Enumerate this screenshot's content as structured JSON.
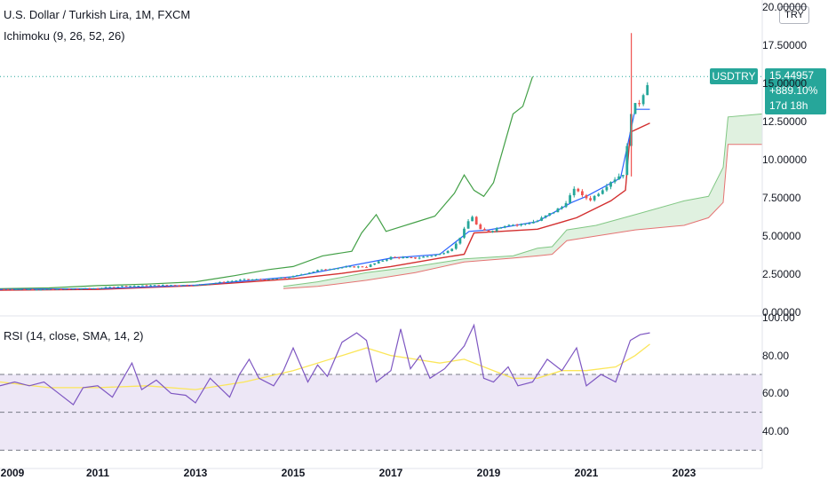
{
  "header": {
    "title": "U.S. Dollar / Turkish Lira, 1M, FXCM",
    "indicator": "Ichimoku (9, 26, 52, 26)",
    "currency": "TRY"
  },
  "price_badge": {
    "symbol": "USDTRY",
    "price": "15.44957",
    "change": "+889.10%",
    "countdown": "17d 18h"
  },
  "rsi_panel": {
    "title": "RSI (14, close, SMA, 14, 2)"
  },
  "colors": {
    "up": "#26a69a",
    "down": "#ef5350",
    "tenkan": "#2962ff",
    "kijun": "#b71c1c",
    "chikou": "#43a047",
    "cloud": "#a5d6a7",
    "rsi": "#7e57c2",
    "rsi_ma": "#fbe65a",
    "rsi_band": "#ede7f6"
  },
  "chart_data": [
    {
      "type": "candlestick",
      "title": "U.S. Dollar / Turkish Lira, 1M, FXCM",
      "ylim": [
        0,
        20
      ],
      "y_ticks": [
        "0.00000",
        "2.50000",
        "5.00000",
        "7.50000",
        "10.00000",
        "12.50000",
        "15.00000",
        "17.50000",
        "20.00000"
      ],
      "y_tick_values": [
        0,
        2.5,
        5,
        7.5,
        10,
        12.5,
        15,
        17.5,
        20
      ],
      "x_ticks": [
        "2009",
        "2011",
        "2013",
        "2015",
        "2017",
        "2019",
        "2021",
        "2023"
      ],
      "xlim": [
        2009,
        2024.6
      ],
      "price_anchors": [
        [
          2009.0,
          1.52
        ],
        [
          2010.0,
          1.5
        ],
        [
          2011.0,
          1.58
        ],
        [
          2011.5,
          1.72
        ],
        [
          2012.5,
          1.79
        ],
        [
          2013.0,
          1.78
        ],
        [
          2014.0,
          2.15
        ],
        [
          2014.5,
          2.15
        ],
        [
          2015.0,
          2.35
        ],
        [
          2015.5,
          2.75
        ],
        [
          2016.0,
          2.95
        ],
        [
          2016.5,
          3.0
        ],
        [
          2017.0,
          3.6
        ],
        [
          2017.5,
          3.55
        ],
        [
          2018.0,
          3.8
        ],
        [
          2018.3,
          4.3
        ],
        [
          2018.5,
          5.4
        ],
        [
          2018.65,
          6.4
        ],
        [
          2018.8,
          5.4
        ],
        [
          2019.0,
          5.3
        ],
        [
          2019.4,
          5.8
        ],
        [
          2019.6,
          5.7
        ],
        [
          2020.0,
          6.0
        ],
        [
          2020.5,
          6.9
        ],
        [
          2020.8,
          8.2
        ],
        [
          2020.9,
          7.6
        ],
        [
          2021.1,
          7.4
        ],
        [
          2021.5,
          8.6
        ],
        [
          2021.8,
          9.2
        ],
        [
          2021.88,
          13.0
        ],
        [
          2021.96,
          13.4
        ],
        [
          2022.1,
          13.8
        ],
        [
          2022.2,
          14.7
        ],
        [
          2022.3,
          15.45
        ]
      ],
      "tenkan_anchors": [
        [
          2009.0,
          1.5
        ],
        [
          2011.0,
          1.55
        ],
        [
          2013.0,
          1.78
        ],
        [
          2015.0,
          2.33
        ],
        [
          2017.0,
          3.55
        ],
        [
          2018.0,
          3.8
        ],
        [
          2018.6,
          5.3
        ],
        [
          2019.0,
          5.4
        ],
        [
          2020.0,
          5.95
        ],
        [
          2020.7,
          7.2
        ],
        [
          2021.0,
          7.6
        ],
        [
          2021.7,
          8.8
        ],
        [
          2021.88,
          11.5
        ],
        [
          2022.0,
          13.3
        ],
        [
          2022.3,
          13.3
        ]
      ],
      "kijun_anchors": [
        [
          2009.0,
          1.45
        ],
        [
          2011.0,
          1.5
        ],
        [
          2013.0,
          1.75
        ],
        [
          2015.0,
          2.2
        ],
        [
          2016.0,
          2.55
        ],
        [
          2017.0,
          3.0
        ],
        [
          2018.0,
          3.55
        ],
        [
          2018.5,
          3.8
        ],
        [
          2018.7,
          5.2
        ],
        [
          2020.0,
          5.45
        ],
        [
          2020.8,
          6.2
        ],
        [
          2021.5,
          7.3
        ],
        [
          2021.8,
          8.0
        ],
        [
          2021.9,
          11.8
        ],
        [
          2022.3,
          12.4
        ]
      ],
      "chikou_anchors": [
        [
          2009.0,
          1.55
        ],
        [
          2010.0,
          1.6
        ],
        [
          2011.0,
          1.75
        ],
        [
          2012.0,
          1.85
        ],
        [
          2013.0,
          2.0
        ],
        [
          2013.8,
          2.4
        ],
        [
          2014.5,
          2.8
        ],
        [
          2015.0,
          3.0
        ],
        [
          2015.6,
          3.7
        ],
        [
          2016.2,
          4.0
        ],
        [
          2016.4,
          5.2
        ],
        [
          2016.7,
          6.4
        ],
        [
          2016.9,
          5.3
        ],
        [
          2017.5,
          5.9
        ],
        [
          2017.9,
          6.3
        ],
        [
          2018.3,
          7.8
        ],
        [
          2018.5,
          9.0
        ],
        [
          2018.7,
          8.0
        ],
        [
          2018.9,
          7.6
        ],
        [
          2019.1,
          8.5
        ],
        [
          2019.5,
          13.0
        ],
        [
          2019.7,
          13.5
        ],
        [
          2019.9,
          15.45
        ]
      ],
      "span_a_anchors": [
        [
          2014.8,
          1.7
        ],
        [
          2015.5,
          2.0
        ],
        [
          2016.5,
          2.6
        ],
        [
          2017.5,
          3.0
        ],
        [
          2018.5,
          3.5
        ],
        [
          2019.5,
          3.7
        ],
        [
          2020.0,
          4.2
        ],
        [
          2020.3,
          4.3
        ],
        [
          2020.6,
          5.4
        ],
        [
          2021.2,
          5.7
        ],
        [
          2022.0,
          6.4
        ],
        [
          2023.0,
          7.3
        ],
        [
          2023.5,
          7.6
        ],
        [
          2023.8,
          9.5
        ],
        [
          2023.9,
          12.8
        ],
        [
          2024.6,
          13.0
        ]
      ],
      "span_b_anchors": [
        [
          2014.8,
          1.55
        ],
        [
          2015.5,
          1.7
        ],
        [
          2016.5,
          2.1
        ],
        [
          2017.5,
          2.6
        ],
        [
          2018.5,
          3.3
        ],
        [
          2019.5,
          3.55
        ],
        [
          2020.0,
          3.7
        ],
        [
          2020.3,
          3.8
        ],
        [
          2020.6,
          4.7
        ],
        [
          2021.2,
          5.0
        ],
        [
          2022.0,
          5.4
        ],
        [
          2023.0,
          5.7
        ],
        [
          2023.5,
          6.2
        ],
        [
          2023.8,
          7.2
        ],
        [
          2023.9,
          11.0
        ],
        [
          2024.6,
          11.0
        ]
      ],
      "spike": {
        "x": 2021.92,
        "high": 18.3,
        "low": 8.9
      },
      "last_price": 15.44957
    },
    {
      "type": "line",
      "title": "RSI (14, close, SMA, 14, 2)",
      "ylim": [
        25,
        100
      ],
      "y_ticks": [
        "40.00",
        "60.00",
        "80.00",
        "100.00"
      ],
      "y_tick_values": [
        40,
        60,
        80,
        100
      ],
      "bands": [
        30,
        50,
        70
      ],
      "series": [
        {
          "role": "rsi",
          "points": [
            [
              2009.0,
              64
            ],
            [
              2009.3,
              66
            ],
            [
              2009.6,
              64
            ],
            [
              2009.9,
              66
            ],
            [
              2010.2,
              60
            ],
            [
              2010.5,
              54
            ],
            [
              2010.7,
              63
            ],
            [
              2011.0,
              64
            ],
            [
              2011.3,
              58
            ],
            [
              2011.7,
              76
            ],
            [
              2011.9,
              62
            ],
            [
              2012.2,
              67
            ],
            [
              2012.5,
              60
            ],
            [
              2012.8,
              59
            ],
            [
              2013.0,
              55
            ],
            [
              2013.3,
              68
            ],
            [
              2013.7,
              58
            ],
            [
              2013.9,
              70
            ],
            [
              2014.1,
              78
            ],
            [
              2014.3,
              68
            ],
            [
              2014.6,
              64
            ],
            [
              2014.8,
              72
            ],
            [
              2015.0,
              84
            ],
            [
              2015.3,
              66
            ],
            [
              2015.5,
              75
            ],
            [
              2015.7,
              69
            ],
            [
              2016.0,
              87
            ],
            [
              2016.3,
              92
            ],
            [
              2016.5,
              88
            ],
            [
              2016.7,
              66
            ],
            [
              2017.0,
              72
            ],
            [
              2017.2,
              94
            ],
            [
              2017.4,
              73
            ],
            [
              2017.6,
              80
            ],
            [
              2017.8,
              68
            ],
            [
              2018.1,
              73
            ],
            [
              2018.5,
              85
            ],
            [
              2018.7,
              96
            ],
            [
              2018.9,
              68
            ],
            [
              2019.1,
              66
            ],
            [
              2019.4,
              74
            ],
            [
              2019.6,
              64
            ],
            [
              2019.9,
              66
            ],
            [
              2020.2,
              78
            ],
            [
              2020.5,
              72
            ],
            [
              2020.8,
              84
            ],
            [
              2021.0,
              64
            ],
            [
              2021.3,
              70
            ],
            [
              2021.6,
              66
            ],
            [
              2021.9,
              88
            ],
            [
              2022.1,
              91
            ],
            [
              2022.3,
              92
            ]
          ]
        },
        {
          "role": "rsi_sma",
          "points": [
            [
              2009.0,
              66
            ],
            [
              2010.0,
              63
            ],
            [
              2011.0,
              63
            ],
            [
              2012.0,
              64
            ],
            [
              2013.0,
              62
            ],
            [
              2014.0,
              66
            ],
            [
              2015.0,
              72
            ],
            [
              2016.0,
              80
            ],
            [
              2016.5,
              84
            ],
            [
              2017.0,
              80
            ],
            [
              2017.5,
              78
            ],
            [
              2018.0,
              76
            ],
            [
              2018.5,
              78
            ],
            [
              2019.0,
              73
            ],
            [
              2019.5,
              68
            ],
            [
              2020.0,
              68
            ],
            [
              2020.5,
              72
            ],
            [
              2021.0,
              72
            ],
            [
              2021.6,
              74
            ],
            [
              2022.0,
              80
            ],
            [
              2022.3,
              86
            ]
          ]
        }
      ]
    }
  ]
}
